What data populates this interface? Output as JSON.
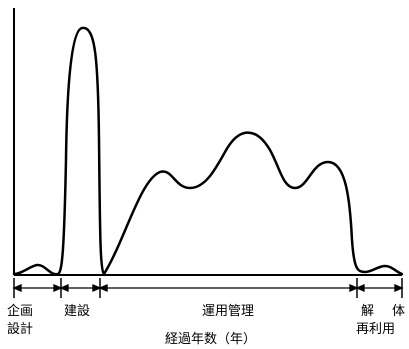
{
  "labels": {
    "phase_plan_1": "企画",
    "phase_plan_2": "設計",
    "phase_build": "建設",
    "phase_operate": "運用管理",
    "phase_demolish": "解",
    "phase_body": "体",
    "phase_reuse": "再利用",
    "axis_label": "経過年数（年）"
  }
}
